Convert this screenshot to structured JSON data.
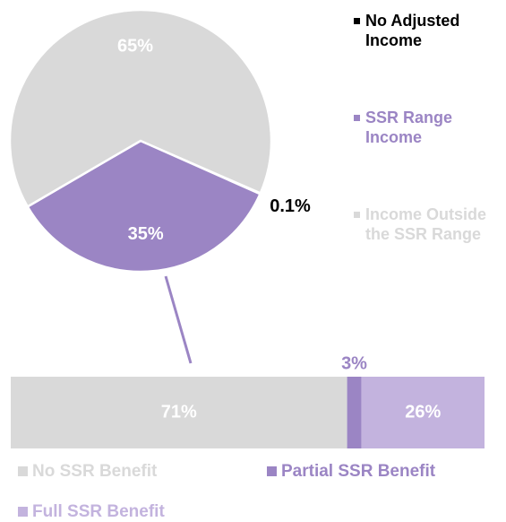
{
  "chart_data": [
    {
      "type": "pie",
      "labels": [
        "No Adjusted Income",
        "SSR Range Income",
        "Income Outside the SSR Range"
      ],
      "values": [
        0.1,
        35,
        65
      ],
      "value_labels": [
        "0.1%",
        "35%",
        "65%"
      ],
      "colors": [
        "#000000",
        "#9b85c4",
        "#d9d9d9"
      ]
    },
    {
      "type": "bar",
      "orientation": "horizontal",
      "stacked": true,
      "categories": [
        null
      ],
      "series": [
        {
          "name": "No SSR Benefit",
          "color": "#d9d9d9",
          "values": [
            71
          ],
          "value_labels": [
            "71%"
          ]
        },
        {
          "name": "Partial SSR Benefit",
          "color": "#9b85c4",
          "values": [
            3
          ],
          "value_labels": [
            "3%"
          ]
        },
        {
          "name": "Full SSR Benefit",
          "color": "#c3b3de",
          "values": [
            26
          ],
          "value_labels": [
            "26%"
          ]
        }
      ]
    }
  ]
}
